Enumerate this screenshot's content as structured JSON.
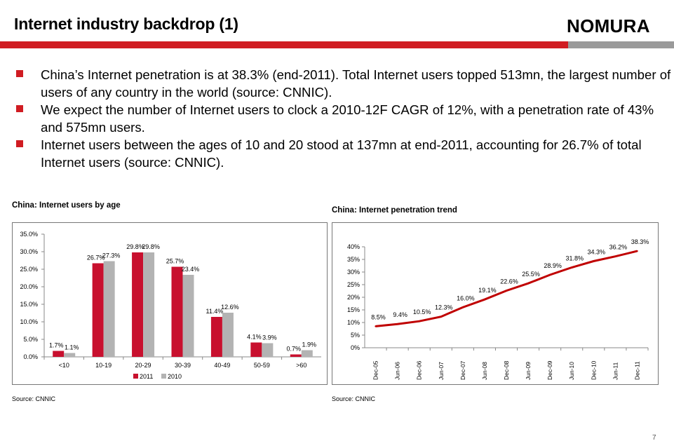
{
  "header": {
    "title": "Internet industry backdrop (1)",
    "logo_text": "NOMURA",
    "accent_color": "#d01c22",
    "secondary_bar_color": "#9a9a9a"
  },
  "bullets": [
    "China’s Internet penetration is at 38.3% (end-2011). Total Internet users topped 513mn, the largest number of users of any country in the world (source: CNNIC).",
    "We expect the number of Internet users to clock a 2010-12F CAGR of 12%, with a penetration rate of 43% and 575mn users.",
    "Internet users between the ages of 10 and 20 stood at 137mn at end-2011, accounting for 26.7% of total Internet users (source: CNNIC)."
  ],
  "left_chart": {
    "title": "China: Internet users by age",
    "source": "Source:  CNNIC"
  },
  "right_chart": {
    "title": "China: Internet penetration trend",
    "source": "Source:  CNNIC"
  },
  "page_number": "7",
  "chart_data": [
    {
      "type": "bar",
      "title": "China: Internet users by age",
      "categories": [
        "<10",
        "10-19",
        "20-29",
        "30-39",
        "40-49",
        "50-59",
        ">60"
      ],
      "series": [
        {
          "name": "2011",
          "color": "#c8102e",
          "values": [
            1.7,
            26.7,
            29.8,
            25.7,
            11.4,
            4.1,
            0.7
          ],
          "labels": [
            "1.7%",
            "26.7%",
            "29.8%",
            "25.7%",
            "11.4%",
            "4.1%",
            "0.7%"
          ]
        },
        {
          "name": "2010",
          "color": "#b3b3b3",
          "values": [
            1.1,
            27.3,
            29.8,
            23.4,
            12.6,
            3.9,
            1.9
          ],
          "labels": [
            "1.1%",
            "27.3%",
            "29.8%",
            "23.4%",
            "12.6%",
            "3.9%",
            "1.9%"
          ]
        }
      ],
      "ylim": [
        0,
        35
      ],
      "yticks": [
        "0.0%",
        "5.0%",
        "10.0%",
        "15.0%",
        "20.0%",
        "25.0%",
        "30.0%",
        "35.0%"
      ],
      "legend": "bottom",
      "grid": false
    },
    {
      "type": "line",
      "title": "China: Internet penetration trend",
      "x": [
        "Dec-05",
        "Jun-06",
        "Dec-06",
        "Jun-07",
        "Dec-07",
        "Jun-08",
        "Dec-08",
        "Jun-09",
        "Dec-09",
        "Jun-10",
        "Dec-10",
        "Jun-11",
        "Dec-11"
      ],
      "series": [
        {
          "color": "#c00000",
          "values": [
            8.5,
            9.4,
            10.5,
            12.3,
            16.0,
            19.1,
            22.6,
            25.5,
            28.9,
            31.8,
            34.3,
            36.2,
            38.3
          ],
          "labels": [
            "8.5%",
            "9.4%",
            "10.5%",
            "12.3%",
            "16.0%",
            "19.1%",
            "22.6%",
            "25.5%",
            "28.9%",
            "31.8%",
            "34.3%",
            "36.2%",
            "38.3%"
          ]
        }
      ],
      "ylim": [
        0,
        40
      ],
      "yticks": [
        "0%",
        "5%",
        "10%",
        "15%",
        "20%",
        "25%",
        "30%",
        "35%",
        "40%"
      ],
      "grid": false
    }
  ]
}
